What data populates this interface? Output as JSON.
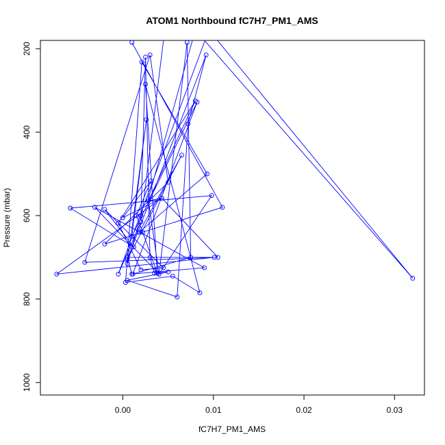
{
  "chart_data": {
    "type": "scatter",
    "title": "ATOM1 Northbound fC7H7_PM1_AMS",
    "xlabel": "fC7H7_PM1_AMS",
    "ylabel": "Pressure (mbar)",
    "xlim": [
      -0.0091,
      0.0333
    ],
    "ylim": [
      1030,
      180
    ],
    "y_reversed": true,
    "x_ticks": [
      "0.00",
      "0.01",
      "0.02",
      "0.03"
    ],
    "x_tick_values": [
      0.0,
      0.01,
      0.02,
      0.03
    ],
    "y_ticks": [
      "200",
      "400",
      "600",
      "800",
      "1000"
    ],
    "y_tick_values": [
      200,
      400,
      600,
      800,
      1000
    ],
    "grid": false,
    "legend": "none",
    "connect_points": true,
    "color": "#0000ff",
    "points": [
      [
        0.0046,
        160
      ],
      [
        0.002,
        615
      ],
      [
        -0.0005,
        740
      ],
      [
        0.0095,
        155
      ],
      [
        0.032,
        750
      ],
      [
        0.008,
        155
      ],
      [
        0.0028,
        560
      ],
      [
        0.004,
        740
      ],
      [
        0.0071,
        185
      ],
      [
        0.0075,
        700
      ],
      [
        0.0011,
        740
      ],
      [
        0.0082,
        328
      ],
      [
        0.001,
        650
      ],
      [
        0.0026,
        370
      ],
      [
        0.0005,
        715
      ],
      [
        0.002,
        600
      ],
      [
        0.0025,
        220
      ],
      [
        0.003,
        700
      ],
      [
        0.0035,
        738
      ],
      [
        0.005,
        735
      ],
      [
        0.0005,
        755
      ],
      [
        0.006,
        795
      ],
      [
        0.0072,
        380
      ],
      [
        0.0092,
        215
      ],
      [
        0.0005,
        705
      ],
      [
        0.0065,
        455
      ],
      [
        0.0018,
        640
      ],
      [
        0.0093,
        500
      ],
      [
        0.0021,
        232
      ],
      [
        0.0003,
        760
      ],
      [
        0.0055,
        745
      ],
      [
        0.0085,
        785
      ],
      [
        0.0025,
        285
      ],
      [
        0.0038,
        738
      ],
      [
        0.0022,
        640
      ],
      [
        0.0015,
        600
      ],
      [
        0.0031,
        517
      ],
      [
        0.0,
        605
      ],
      [
        0.0043,
        558
      ],
      [
        -0.0073,
        740
      ],
      [
        0.0101,
        700
      ],
      [
        0.0005,
        700
      ],
      [
        0.001,
        740
      ],
      [
        0.009,
        725
      ],
      [
        -0.0031,
        580
      ],
      [
        0.004,
        740
      ],
      [
        0.0098,
        552
      ],
      [
        -0.0058,
        582
      ],
      [
        0.0012,
        675
      ],
      [
        -0.002,
        585
      ],
      [
        0.0045,
        725
      ],
      [
        0.002,
        730
      ],
      [
        -0.0005,
        618
      ],
      [
        0.008,
        325
      ],
      [
        0.0028,
        565
      ],
      [
        0.0043,
        558
      ],
      [
        0.0105,
        700
      ],
      [
        -0.0042,
        712
      ],
      [
        0.003,
        215
      ],
      [
        0.005,
        520
      ],
      [
        -0.002,
        668
      ],
      [
        0.011,
        580
      ],
      [
        0.001,
        185
      ]
    ]
  }
}
